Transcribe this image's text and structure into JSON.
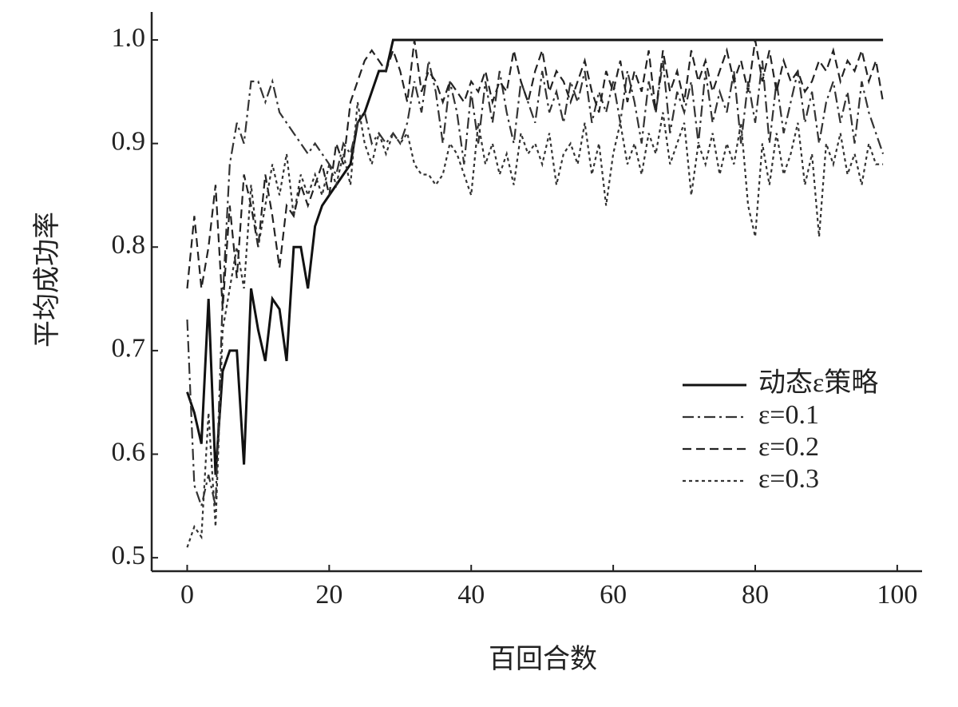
{
  "chart_data": {
    "type": "line",
    "x_label": "百回合数",
    "y_label": "平均成功率",
    "x": [
      0,
      1,
      2,
      3,
      4,
      5,
      6,
      7,
      8,
      9,
      10,
      11,
      12,
      13,
      14,
      15,
      16,
      17,
      18,
      19,
      20,
      21,
      22,
      23,
      24,
      25,
      26,
      27,
      28,
      29,
      30,
      31,
      32,
      33,
      34,
      35,
      36,
      37,
      38,
      39,
      40,
      41,
      42,
      43,
      44,
      45,
      46,
      47,
      48,
      49,
      50,
      51,
      52,
      53,
      54,
      55,
      56,
      57,
      58,
      59,
      60,
      61,
      62,
      63,
      64,
      65,
      66,
      67,
      68,
      69,
      70,
      71,
      72,
      73,
      74,
      75,
      76,
      77,
      78,
      79,
      80,
      81,
      82,
      83,
      84,
      85,
      86,
      87,
      88,
      89,
      90,
      91,
      92,
      93,
      94,
      95,
      96,
      97,
      98
    ],
    "series": [
      {
        "name": "动态ε策略",
        "color": "#111",
        "dash": "solid",
        "values": [
          0.66,
          0.64,
          0.61,
          0.75,
          0.58,
          0.68,
          0.7,
          0.7,
          0.59,
          0.76,
          0.72,
          0.69,
          0.75,
          0.74,
          0.69,
          0.8,
          0.8,
          0.76,
          0.82,
          0.84,
          0.85,
          0.86,
          0.87,
          0.88,
          0.92,
          0.93,
          0.95,
          0.97,
          0.97,
          1,
          1,
          1,
          1,
          1,
          1,
          1,
          1,
          1,
          1,
          1,
          1,
          1,
          1,
          1,
          1,
          1,
          1,
          1,
          1,
          1,
          1,
          1,
          1,
          1,
          1,
          1,
          1,
          1,
          1,
          1,
          1,
          1,
          1,
          1,
          1,
          1,
          1,
          1,
          1,
          1,
          1,
          1,
          1,
          1,
          1,
          1,
          1,
          1,
          1,
          1,
          1,
          1,
          1,
          1,
          1,
          1,
          1,
          1,
          1,
          1,
          1,
          1,
          1,
          1,
          1,
          1,
          1,
          1,
          1
        ]
      },
      {
        "name": "ε=0.1",
        "color": "#333",
        "dash": "dashdot",
        "values": [
          0.73,
          0.57,
          0.55,
          0.58,
          0.55,
          0.75,
          0.88,
          0.92,
          0.9,
          0.96,
          0.96,
          0.94,
          0.96,
          0.93,
          0.92,
          0.91,
          0.9,
          0.89,
          0.9,
          0.89,
          0.88,
          0.87,
          0.9,
          0.89,
          0.92,
          0.93,
          0.9,
          0.91,
          0.9,
          0.91,
          0.9,
          0.92,
          0.96,
          0.93,
          0.98,
          0.95,
          0.9,
          0.96,
          0.93,
          0.88,
          0.95,
          0.9,
          0.96,
          0.92,
          0.97,
          0.93,
          0.9,
          0.96,
          0.94,
          0.92,
          0.97,
          0.93,
          0.95,
          0.92,
          0.96,
          0.94,
          0.97,
          0.92,
          0.95,
          0.93,
          0.96,
          0.92,
          0.97,
          0.94,
          0.9,
          0.96,
          0.93,
          0.98,
          0.91,
          0.95,
          0.93,
          0.96,
          0.9,
          0.97,
          0.92,
          0.95,
          0.93,
          0.97,
          0.9,
          0.96,
          0.92,
          0.98,
          0.9,
          0.96,
          0.91,
          0.94,
          0.97,
          0.92,
          0.95,
          0.9,
          0.94,
          0.96,
          0.92,
          0.95,
          0.9,
          0.96,
          0.93,
          0.91,
          0.89
        ]
      },
      {
        "name": "ε=0.2",
        "color": "#222",
        "dash": "dashed",
        "values": [
          0.76,
          0.83,
          0.76,
          0.8,
          0.86,
          0.74,
          0.84,
          0.77,
          0.87,
          0.84,
          0.8,
          0.87,
          0.83,
          0.78,
          0.84,
          0.83,
          0.86,
          0.84,
          0.86,
          0.88,
          0.85,
          0.9,
          0.88,
          0.94,
          0.96,
          0.98,
          0.99,
          0.98,
          0.97,
          0.99,
          0.97,
          0.94,
          1.0,
          0.95,
          0.97,
          0.96,
          0.94,
          0.96,
          0.95,
          0.94,
          0.96,
          0.95,
          0.97,
          0.94,
          0.96,
          0.95,
          0.99,
          0.96,
          0.94,
          0.97,
          0.99,
          0.95,
          0.97,
          0.96,
          0.94,
          0.96,
          0.98,
          0.95,
          0.93,
          0.97,
          0.95,
          0.98,
          0.94,
          0.97,
          0.95,
          0.99,
          0.93,
          0.99,
          0.95,
          0.97,
          0.94,
          0.99,
          0.96,
          0.98,
          0.95,
          0.97,
          0.99,
          0.96,
          0.98,
          0.95,
          1.0,
          0.96,
          0.99,
          0.95,
          0.98,
          0.96,
          0.97,
          0.95,
          0.96,
          0.98,
          0.97,
          0.99,
          0.96,
          0.98,
          0.97,
          0.99,
          0.96,
          0.98,
          0.94
        ]
      },
      {
        "name": "ε=0.3",
        "color": "#333",
        "dash": "dotted",
        "values": [
          0.51,
          0.53,
          0.52,
          0.64,
          0.53,
          0.72,
          0.76,
          0.8,
          0.76,
          0.86,
          0.8,
          0.84,
          0.88,
          0.85,
          0.89,
          0.83,
          0.87,
          0.85,
          0.87,
          0.85,
          0.88,
          0.86,
          0.89,
          0.86,
          0.94,
          0.9,
          0.88,
          0.91,
          0.89,
          0.91,
          0.9,
          0.91,
          0.88,
          0.87,
          0.87,
          0.86,
          0.87,
          0.9,
          0.89,
          0.87,
          0.85,
          0.92,
          0.88,
          0.9,
          0.87,
          0.89,
          0.86,
          0.91,
          0.89,
          0.9,
          0.88,
          0.91,
          0.86,
          0.89,
          0.9,
          0.88,
          0.92,
          0.87,
          0.9,
          0.84,
          0.89,
          0.92,
          0.88,
          0.9,
          0.87,
          0.91,
          0.89,
          0.93,
          0.88,
          0.9,
          0.92,
          0.85,
          0.9,
          0.88,
          0.91,
          0.87,
          0.9,
          0.88,
          0.92,
          0.84,
          0.81,
          0.9,
          0.86,
          0.91,
          0.87,
          0.89,
          0.92,
          0.86,
          0.89,
          0.81,
          0.9,
          0.88,
          0.91,
          0.87,
          0.89,
          0.86,
          0.9,
          0.88,
          0.88
        ]
      }
    ],
    "xlim": [
      -5,
      103.5
    ],
    "ylim": [
      0.487,
      1.027
    ],
    "xticks": [
      0,
      20,
      40,
      60,
      80,
      100
    ],
    "yticks": [
      0.5,
      0.6,
      0.7,
      0.8,
      0.9,
      {
        "value": 1,
        "label": "1.0"
      }
    ],
    "legend": "right"
  }
}
